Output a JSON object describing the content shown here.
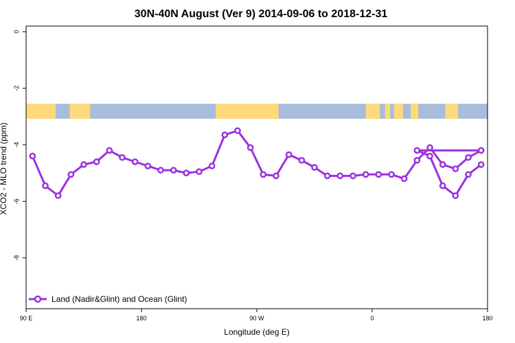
{
  "chart_data": {
    "type": "line",
    "title": "30N-40N August (Ver 9)   2014-09-06 to 2018-12-31",
    "xlabel": "Longitude (deg E)",
    "ylabel": "XCO2 - MLO trend (ppm)",
    "xlim": [
      90,
      450
    ],
    "ylim": [
      -9.8,
      0.2
    ],
    "x_ticks": [
      {
        "value": 90,
        "label": "90 E"
      },
      {
        "value": 180,
        "label": "180"
      },
      {
        "value": 270,
        "label": "90 W"
      },
      {
        "value": 360,
        "label": "0"
      },
      {
        "value": 450,
        "label": "180"
      }
    ],
    "y_ticks": [
      {
        "value": 0,
        "label": "0"
      },
      {
        "value": -2,
        "label": "-2"
      },
      {
        "value": -4,
        "label": "-4"
      },
      {
        "value": -6,
        "label": "-6"
      },
      {
        "value": -8,
        "label": "-8"
      }
    ],
    "grid": false,
    "legend_position": "bottom-left",
    "land_ocean_band": {
      "y_range": [
        -3.08,
        -2.55
      ],
      "ocean_color": "#a8bddc",
      "land_color": "#ffd97a",
      "land_segments": [
        [
          90,
          113
        ],
        [
          124,
          140
        ],
        [
          238,
          284
        ],
        [
          278,
          287
        ],
        [
          355,
          366
        ],
        [
          370,
          374
        ],
        [
          377,
          384
        ],
        [
          390,
          396
        ],
        [
          417,
          427
        ]
      ]
    },
    "series": [
      {
        "name": "Land (Nadir&Glint) and Ocean (Glint)",
        "color": "#9b30e0",
        "x": [
          95,
          105,
          115,
          125,
          135,
          145,
          155,
          165,
          175,
          185,
          195,
          205,
          215,
          225,
          235,
          245,
          255,
          265,
          275,
          285,
          295,
          305,
          315,
          325,
          335,
          345,
          355,
          365,
          375,
          385,
          395,
          405,
          415,
          425,
          435,
          445
        ],
        "values": [
          -4.4,
          -5.45,
          -5.8,
          -5.05,
          -4.7,
          -4.6,
          -4.2,
          -4.45,
          -4.6,
          -4.75,
          -4.9,
          -4.9,
          -5.0,
          -4.95,
          -4.75,
          -3.65,
          -3.5,
          -4.1,
          -5.05,
          -5.1,
          -4.35,
          -4.55,
          -4.8,
          -5.1,
          -5.1,
          -5.1,
          -5.05,
          -5.05,
          -5.05,
          -5.2,
          -4.55,
          -4.1,
          -4.7,
          -4.85,
          -4.45,
          -4.2
        ],
        "extra": []
      }
    ],
    "series_extra": {
      "x": [
        395,
        405,
        415,
        425,
        435,
        445
      ],
      "values": [
        -4.2,
        -4.4,
        -5.45,
        -5.8,
        -5.05,
        -4.7
      ]
    }
  }
}
